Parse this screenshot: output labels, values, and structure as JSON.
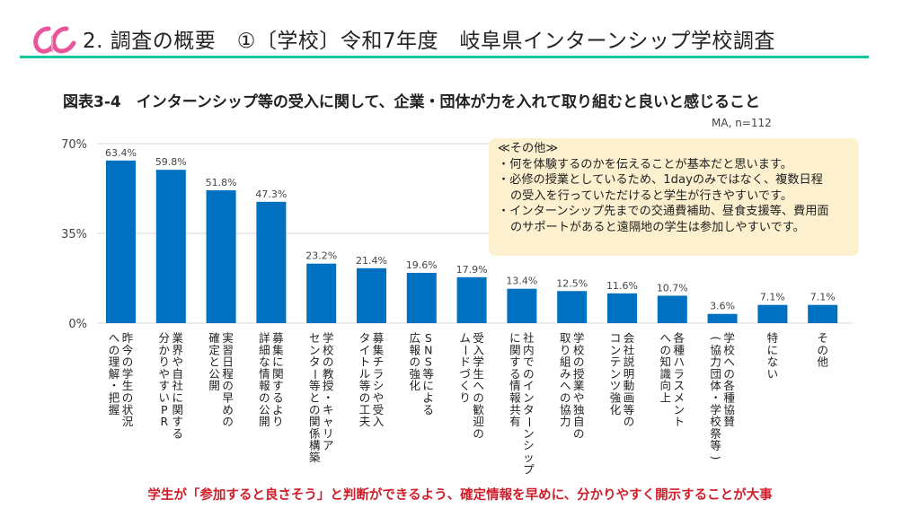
{
  "header": {
    "title": "2. 調査の概要　①〔学校〕令和7年度　岐阜県インターンシップ学校調査",
    "logo_icon": "pink-swirl-logo-icon",
    "rule_color": "#14c79c"
  },
  "chart_data": {
    "type": "bar",
    "title": "図表3-4　インターンシップ等の受入に関して、企業・団体が力を入れて取り組むと良いと感じること",
    "note": "MA, n=112",
    "xlabel": "",
    "ylabel": "",
    "ylim": [
      0,
      70
    ],
    "yticks": [
      "0%",
      "35%",
      "70%"
    ],
    "ytick_values": [
      0,
      35,
      70
    ],
    "grid": true,
    "bar_color": "#0070c0",
    "categories": [
      [
        "昨今の学生の状況",
        "への理解・把握"
      ],
      [
        "業界や自社に関する",
        "分かりやすいPR"
      ],
      [
        "実習日程の早めの",
        "確定と公開"
      ],
      [
        "募集に関するより",
        "詳細な情報の公開"
      ],
      [
        "学校の教授・キャリア",
        "センター等との関係構築"
      ],
      [
        "募集チラシや受入",
        "タイトル等の工夫"
      ],
      [
        "SNS等による",
        "広報の強化"
      ],
      [
        "受入学生への歓迎の",
        "ムードづくり"
      ],
      [
        "社内でのインターンシップ",
        "に関する情報共有"
      ],
      [
        "学校の授業や独自の",
        "取り組みへの協力"
      ],
      [
        "会社説明動画等の",
        "コンテンツ強化"
      ],
      [
        "各種ハラスメント",
        "への知識向上"
      ],
      [
        "学校への各種協賛",
        "(協力団体・学校祭等)"
      ],
      [
        "特にない"
      ],
      [
        "その他"
      ]
    ],
    "values": [
      63.4,
      59.8,
      51.8,
      47.3,
      23.2,
      21.4,
      19.6,
      17.9,
      13.4,
      12.5,
      11.6,
      10.7,
      3.6,
      7.1,
      7.1
    ],
    "value_labels": [
      "63.4%",
      "59.8%",
      "51.8%",
      "47.3%",
      "23.2%",
      "21.4%",
      "19.6%",
      "17.9%",
      "13.4%",
      "12.5%",
      "11.6%",
      "10.7%",
      "3.6%",
      "7.1%",
      "7.1%"
    ],
    "annotation": {
      "heading": "≪その他≫",
      "items": [
        [
          "・何を体験するのかを伝えることが基本だと思います。"
        ],
        [
          "・必修の授業としているため、1dayのみではなく、複数日程",
          "の受入を行っていただけると学生が行きやすいです。"
        ],
        [
          "・インターンシップ先までの交通費補助、昼食支援等、費用面",
          "のサポートがあると遠隔地の学生は参加しやすいです。"
        ]
      ]
    }
  },
  "footer": {
    "conclusion": "学生が「参加すると良さそう」と判断ができるよう、確定情報を早めに、分かりやすく開示することが大事",
    "conclusion_color": "#d01f2a"
  }
}
